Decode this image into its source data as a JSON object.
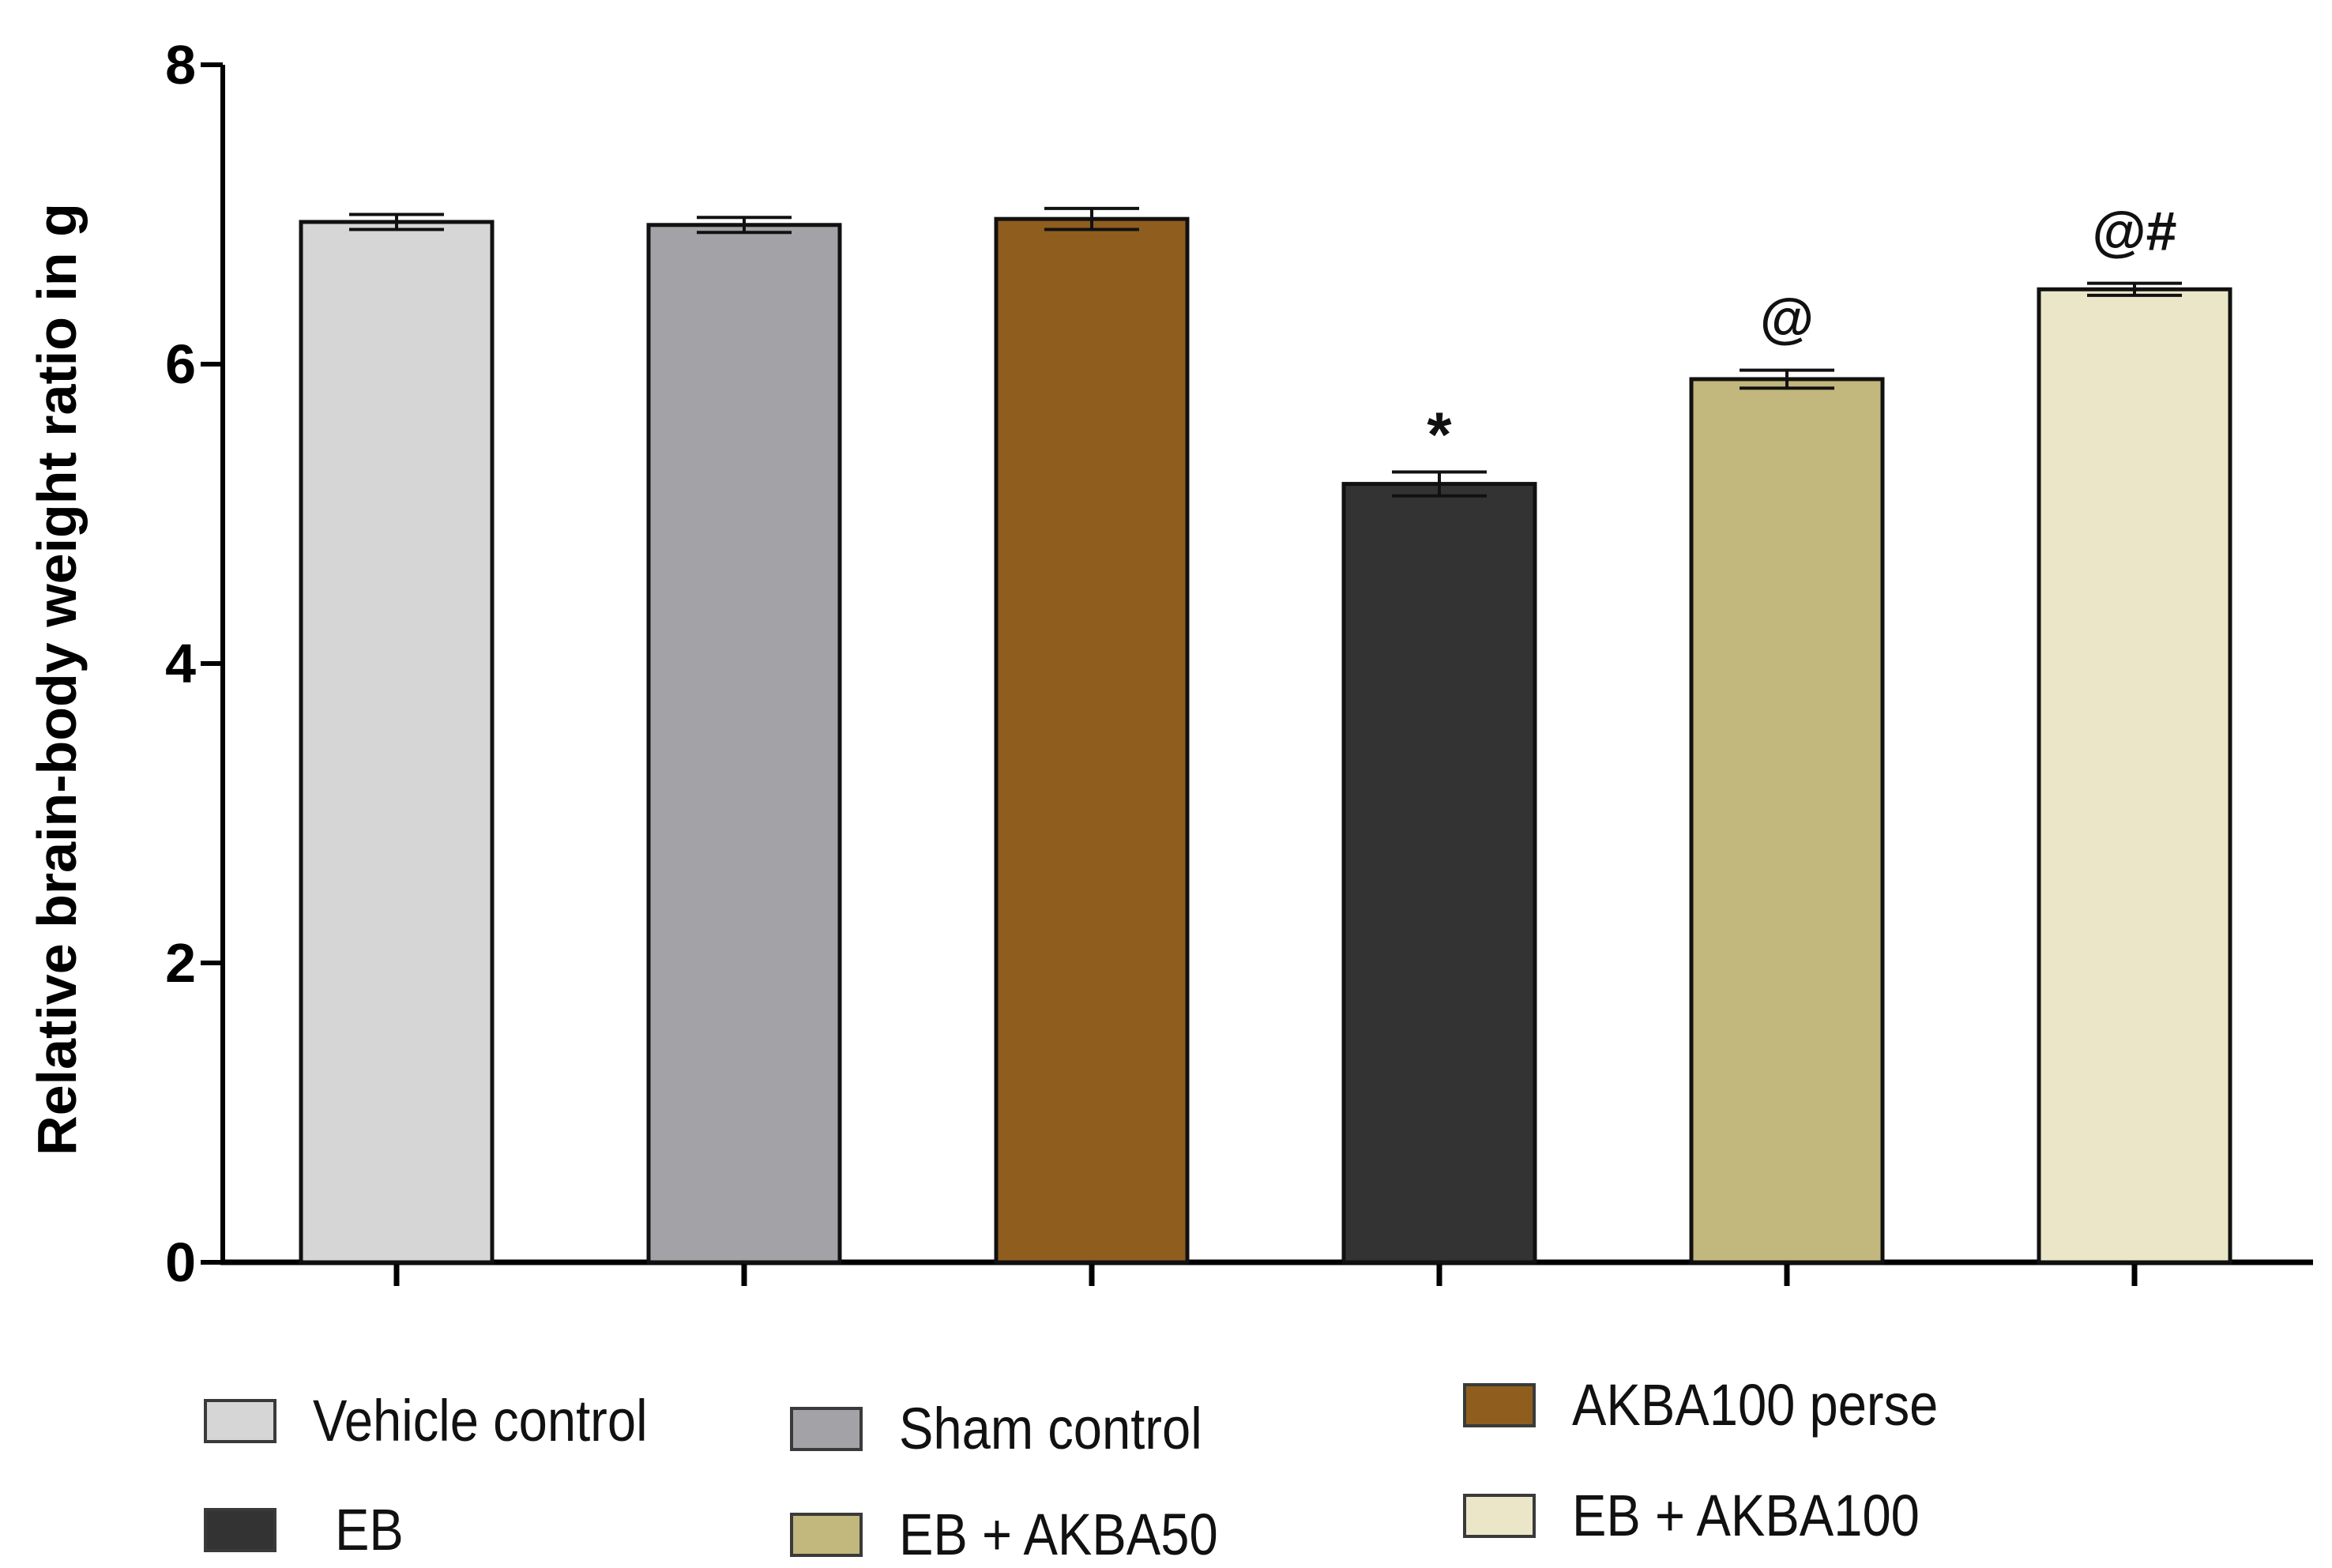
{
  "chart_data": {
    "type": "bar",
    "title": "",
    "xlabel": "",
    "ylabel": "Relative brain-body weight ratio in g",
    "ylim": [
      0,
      8
    ],
    "yticks": [
      "0",
      "2",
      "4",
      "6",
      "8"
    ],
    "grid": false,
    "legend_position": "bottom",
    "categories": [
      "Vehicle control",
      "Sham control",
      "AKBA100 perse",
      "EB",
      "EB + AKBA50",
      "EB + AKBA100"
    ],
    "values": [
      6.95,
      6.93,
      6.97,
      5.2,
      5.9,
      6.5
    ],
    "errors": [
      0.05,
      0.05,
      0.07,
      0.08,
      0.06,
      0.04
    ],
    "annotations": [
      "",
      "",
      "",
      "*",
      "@",
      "@#"
    ],
    "colors": [
      "#d6d6d6",
      "#a3a2a6",
      "#8f5e1e",
      "#333333",
      "#c2b77c",
      "#ece6c9"
    ]
  },
  "legend": {
    "items": [
      {
        "label": "Vehicle control",
        "color": "#d6d6d6"
      },
      {
        "label": "Sham control",
        "color": "#a3a2a6"
      },
      {
        "label": "AKBA100 perse",
        "color": "#8f5e1e"
      },
      {
        "label": "EB",
        "color": "#333333"
      },
      {
        "label": "EB + AKBA50",
        "color": "#c2b77c"
      },
      {
        "label": "EB + AKBA100",
        "color": "#ece6c9"
      }
    ]
  }
}
